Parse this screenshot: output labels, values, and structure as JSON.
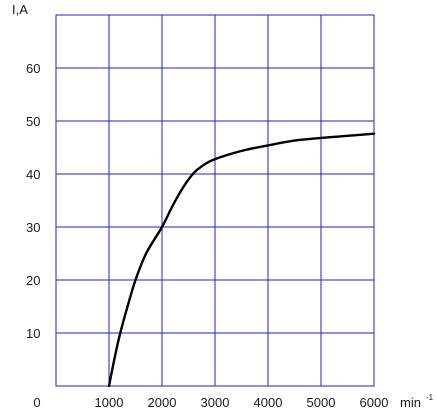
{
  "chart_data": {
    "type": "line",
    "title": "",
    "ylabel": "I,A",
    "xlabel": "min",
    "xlabel_superscript": "-1",
    "origin_label": "0",
    "xlim": [
      0,
      6000
    ],
    "ylim": [
      0,
      70
    ],
    "x_ticks": [
      1000,
      2000,
      3000,
      4000,
      5000,
      6000
    ],
    "x_tick_labels": [
      "1000",
      "2000",
      "3000",
      "4000",
      "5000",
      "6000"
    ],
    "y_ticks": [
      10,
      20,
      30,
      40,
      50,
      60
    ],
    "y_tick_labels": [
      "10",
      "20",
      "30",
      "40",
      "50",
      "60"
    ],
    "grid": true,
    "grid_color": "#2222cc",
    "line_color": "#000000",
    "series": [
      {
        "x": [
          1000,
          1100,
          1200,
          1350,
          1500,
          1700,
          2000,
          2200,
          2400,
          2600,
          2800,
          3000,
          3300,
          3600,
          4000,
          4500,
          5000,
          5500,
          6000
        ],
        "y": [
          0,
          5,
          9.5,
          15,
          20,
          25,
          30,
          34,
          37.5,
          40.2,
          41.8,
          42.8,
          43.8,
          44.6,
          45.4,
          46.3,
          46.8,
          47.2,
          47.6
        ]
      }
    ]
  }
}
